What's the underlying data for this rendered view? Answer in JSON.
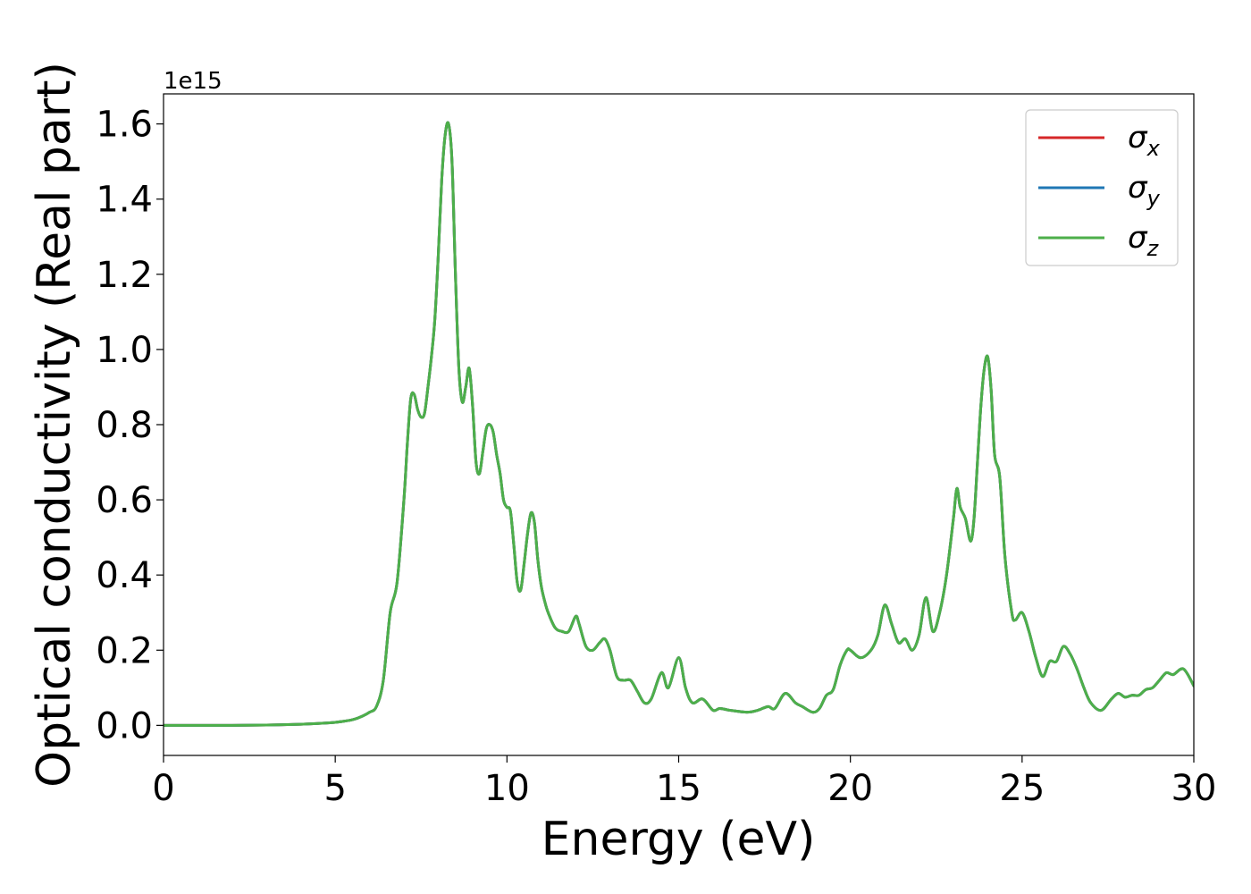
{
  "chart_data": {
    "type": "line",
    "xlabel": "Energy (eV)",
    "ylabel": "Optical conductivity (Real part)",
    "y_offset_label": "1e15",
    "y_scale": 1000000000000000.0,
    "xlim": [
      0,
      30
    ],
    "ylim": [
      -0.08,
      1.68
    ],
    "xticks": [
      0,
      5,
      10,
      15,
      20,
      25,
      30
    ],
    "xtick_labels": [
      "0",
      "5",
      "10",
      "15",
      "20",
      "25",
      "30"
    ],
    "yticks": [
      0.0,
      0.2,
      0.4,
      0.6,
      0.8,
      1.0,
      1.2,
      1.4,
      1.6
    ],
    "ytick_labels": [
      "0.0",
      "0.2",
      "0.4",
      "0.6",
      "0.8",
      "1.0",
      "1.2",
      "1.4",
      "1.6"
    ],
    "grid": false,
    "legend_position": "top-right",
    "series": [
      {
        "name": "σx",
        "symbol": "σ",
        "subscript": "x",
        "color": "#d62728"
      },
      {
        "name": "σy",
        "symbol": "σ",
        "subscript": "y",
        "color": "#1f77b4"
      },
      {
        "name": "σz",
        "symbol": "σ",
        "subscript": "z",
        "color": "#4daf4a"
      }
    ],
    "x": [
      0,
      1,
      2,
      3,
      4,
      4.5,
      5,
      5.5,
      5.8,
      6.0,
      6.2,
      6.4,
      6.6,
      6.8,
      7.0,
      7.1,
      7.2,
      7.3,
      7.4,
      7.5,
      7.6,
      7.7,
      7.8,
      7.9,
      8.0,
      8.1,
      8.2,
      8.3,
      8.4,
      8.5,
      8.6,
      8.7,
      8.8,
      8.9,
      9.0,
      9.1,
      9.2,
      9.3,
      9.4,
      9.5,
      9.6,
      9.7,
      9.8,
      9.9,
      10.0,
      10.1,
      10.2,
      10.3,
      10.4,
      10.5,
      10.6,
      10.7,
      10.8,
      10.9,
      11.0,
      11.1,
      11.2,
      11.4,
      11.6,
      11.8,
      12.0,
      12.1,
      12.3,
      12.5,
      12.7,
      12.85,
      13.0,
      13.2,
      13.4,
      13.6,
      13.8,
      14.0,
      14.2,
      14.5,
      14.7,
      15.0,
      15.2,
      15.4,
      15.7,
      16.0,
      16.2,
      16.5,
      17.0,
      17.3,
      17.6,
      17.8,
      18.1,
      18.4,
      18.6,
      18.9,
      19.1,
      19.3,
      19.5,
      19.7,
      19.9,
      20.0,
      20.3,
      20.6,
      20.8,
      21.0,
      21.2,
      21.4,
      21.6,
      21.8,
      22.0,
      22.2,
      22.4,
      22.6,
      22.8,
      23.0,
      23.1,
      23.2,
      23.35,
      23.5,
      23.6,
      23.7,
      23.8,
      23.9,
      24.0,
      24.1,
      24.2,
      24.35,
      24.5,
      24.7,
      24.8,
      25.0,
      25.2,
      25.4,
      25.6,
      25.8,
      26.0,
      26.2,
      26.4,
      26.6,
      26.8,
      27.0,
      27.3,
      27.6,
      27.8,
      28.0,
      28.2,
      28.4,
      28.6,
      28.8,
      29.0,
      29.2,
      29.4,
      29.7,
      30.0
    ],
    "values": [
      0.0,
      0.0,
      0.0,
      0.001,
      0.003,
      0.005,
      0.008,
      0.015,
      0.025,
      0.035,
      0.05,
      0.12,
      0.3,
      0.38,
      0.6,
      0.75,
      0.87,
      0.88,
      0.84,
      0.82,
      0.83,
      0.9,
      0.98,
      1.08,
      1.25,
      1.45,
      1.57,
      1.6,
      1.5,
      1.2,
      0.95,
      0.86,
      0.9,
      0.95,
      0.85,
      0.7,
      0.67,
      0.73,
      0.79,
      0.8,
      0.78,
      0.72,
      0.67,
      0.6,
      0.58,
      0.57,
      0.48,
      0.38,
      0.36,
      0.43,
      0.51,
      0.565,
      0.54,
      0.44,
      0.37,
      0.33,
      0.3,
      0.26,
      0.25,
      0.25,
      0.29,
      0.27,
      0.21,
      0.2,
      0.22,
      0.23,
      0.2,
      0.13,
      0.12,
      0.12,
      0.09,
      0.06,
      0.07,
      0.14,
      0.1,
      0.18,
      0.1,
      0.06,
      0.07,
      0.04,
      0.045,
      0.04,
      0.035,
      0.04,
      0.05,
      0.045,
      0.085,
      0.06,
      0.05,
      0.035,
      0.045,
      0.08,
      0.095,
      0.16,
      0.2,
      0.2,
      0.18,
      0.2,
      0.24,
      0.32,
      0.27,
      0.22,
      0.23,
      0.2,
      0.24,
      0.34,
      0.25,
      0.3,
      0.4,
      0.55,
      0.63,
      0.58,
      0.55,
      0.49,
      0.55,
      0.7,
      0.85,
      0.95,
      0.98,
      0.89,
      0.72,
      0.66,
      0.45,
      0.3,
      0.28,
      0.3,
      0.25,
      0.18,
      0.13,
      0.17,
      0.17,
      0.21,
      0.19,
      0.15,
      0.1,
      0.06,
      0.04,
      0.07,
      0.085,
      0.075,
      0.08,
      0.08,
      0.095,
      0.1,
      0.12,
      0.14,
      0.135,
      0.15,
      0.105
    ]
  }
}
